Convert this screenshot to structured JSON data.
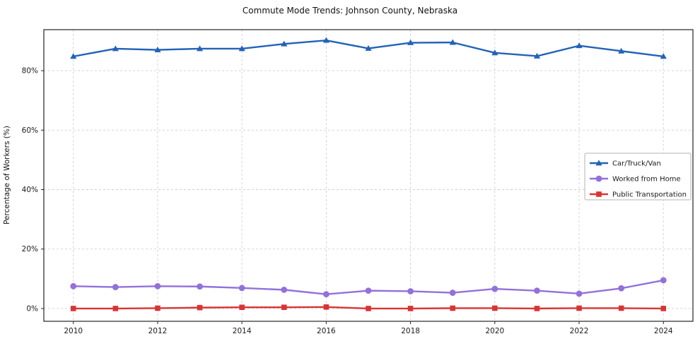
{
  "chart_data": {
    "type": "line",
    "title": "Commute Mode Trends: Johnson County, Nebraska",
    "xlabel": "",
    "ylabel": "Percentage of Workers (%)",
    "x": [
      2010,
      2011,
      2012,
      2013,
      2014,
      2015,
      2016,
      2017,
      2018,
      2019,
      2020,
      2021,
      2022,
      2023,
      2024
    ],
    "series": [
      {
        "name": "Car/Truck/Van",
        "color": "#2362b8",
        "marker": "triangle",
        "values": [
          84.8,
          87.4,
          87.0,
          87.4,
          87.4,
          89.0,
          90.2,
          87.5,
          89.4,
          89.5,
          86.0,
          84.9,
          88.4,
          86.6,
          84.8
        ]
      },
      {
        "name": "Worked from Home",
        "color": "#9370db",
        "marker": "circle",
        "values": [
          7.5,
          7.2,
          7.5,
          7.4,
          6.9,
          6.3,
          4.8,
          6.0,
          5.8,
          5.3,
          6.6,
          6.0,
          5.0,
          6.8,
          9.5
        ]
      },
      {
        "name": "Public Transportation",
        "color": "#d93434",
        "marker": "square",
        "values": [
          0.0,
          0.0,
          0.1,
          0.3,
          0.4,
          0.4,
          0.5,
          0.0,
          0.0,
          0.1,
          0.1,
          0.0,
          0.1,
          0.1,
          0.0
        ]
      }
    ],
    "x_ticks": [
      2010,
      2012,
      2014,
      2016,
      2018,
      2020,
      2022,
      2024
    ],
    "y_ticks": [
      0,
      20,
      40,
      60,
      80
    ],
    "y_tick_labels": [
      "0%",
      "20%",
      "40%",
      "60%",
      "80%"
    ],
    "xlim": [
      2009.3,
      2024.7
    ],
    "ylim": [
      -4.3,
      93.8
    ],
    "grid": true,
    "legend_position": "center-right"
  }
}
